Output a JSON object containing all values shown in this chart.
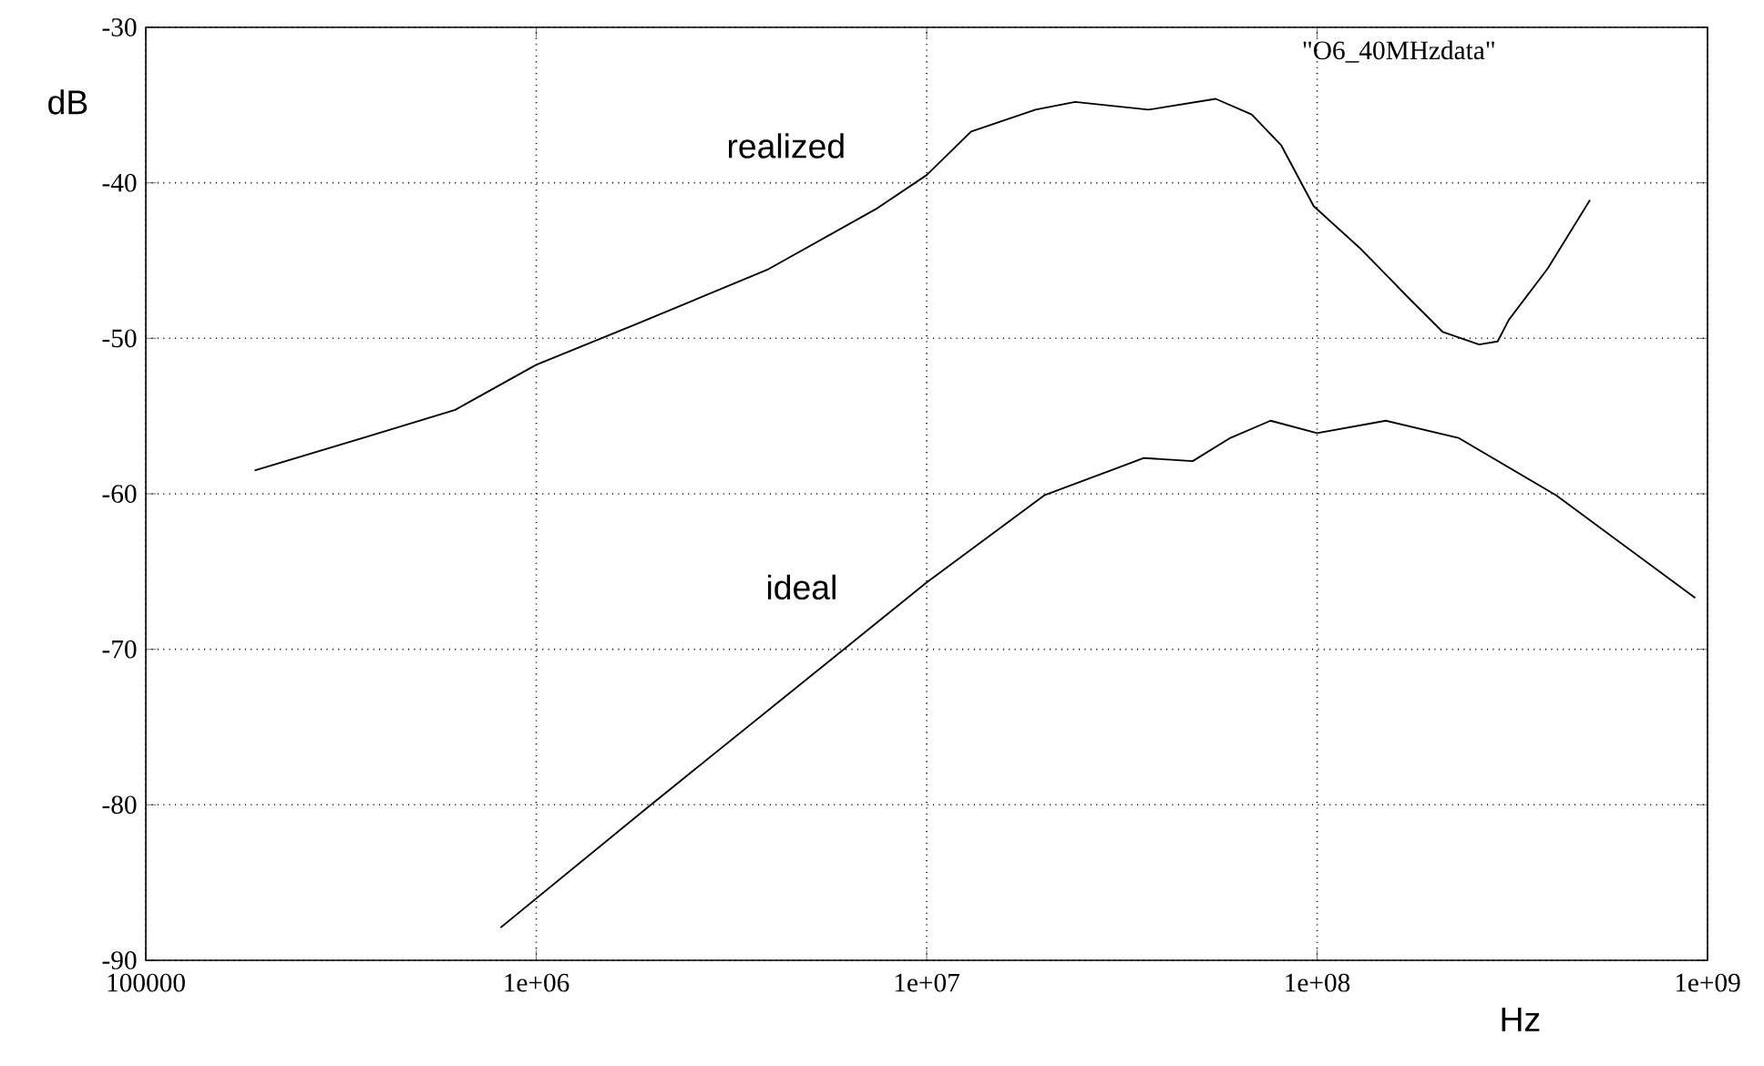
{
  "chart_data": {
    "type": "line",
    "xlabel": "Hz",
    "ylabel": "dB",
    "log": "x",
    "grid": true,
    "line_style": "solid",
    "marker": "none",
    "xlim": [
      100000,
      1000000000
    ],
    "ylim": [
      -90,
      -30
    ],
    "xticks": [
      100000,
      {
        "value": 1000000,
        "label": "1e+06"
      },
      {
        "value": 10000000,
        "label": "1e+07"
      },
      {
        "value": 100000000,
        "label": "1e+08"
      },
      {
        "value": 1000000000,
        "label": "1e+09"
      }
    ],
    "yticks": [
      -90,
      -80,
      -70,
      -60,
      -50,
      -40,
      -30
    ],
    "series": [
      {
        "name": "realized",
        "color": "#000000",
        "x": [
          190000,
          360000,
          620000,
          1000000,
          1800000,
          3900000,
          7400000,
          10000000,
          13000000,
          19000000,
          24000000,
          37000000,
          55000000,
          68000000,
          81000000,
          98000000,
          130000000,
          170000000,
          210000000,
          260000000,
          290000000,
          310000000,
          390000000,
          500000000
        ],
        "values": [
          -58.5,
          -56.4,
          -54.6,
          -51.7,
          -49.1,
          -45.6,
          -41.7,
          -39.5,
          -36.7,
          -35.3,
          -34.8,
          -35.3,
          -34.6,
          -35.6,
          -37.6,
          -41.5,
          -44.3,
          -47.3,
          -49.6,
          -50.4,
          -50.2,
          -48.8,
          -45.5,
          -41.1
        ]
      },
      {
        "name": "ideal",
        "color": "#000000",
        "x": [
          810000,
          1900000,
          6000000,
          10000000,
          20000000,
          36000000,
          48000000,
          60000000,
          76000000,
          100000000,
          150000000,
          230000000,
          410000000,
          930000000
        ],
        "values": [
          -87.9,
          -80.3,
          -70.2,
          -65.7,
          -60.1,
          -57.7,
          -57.9,
          -56.4,
          -55.3,
          -56.1,
          -55.3,
          -56.4,
          -60.1,
          -66.7
        ]
      }
    ],
    "annotations": [
      "\"O6_40MHzdata\""
    ]
  }
}
